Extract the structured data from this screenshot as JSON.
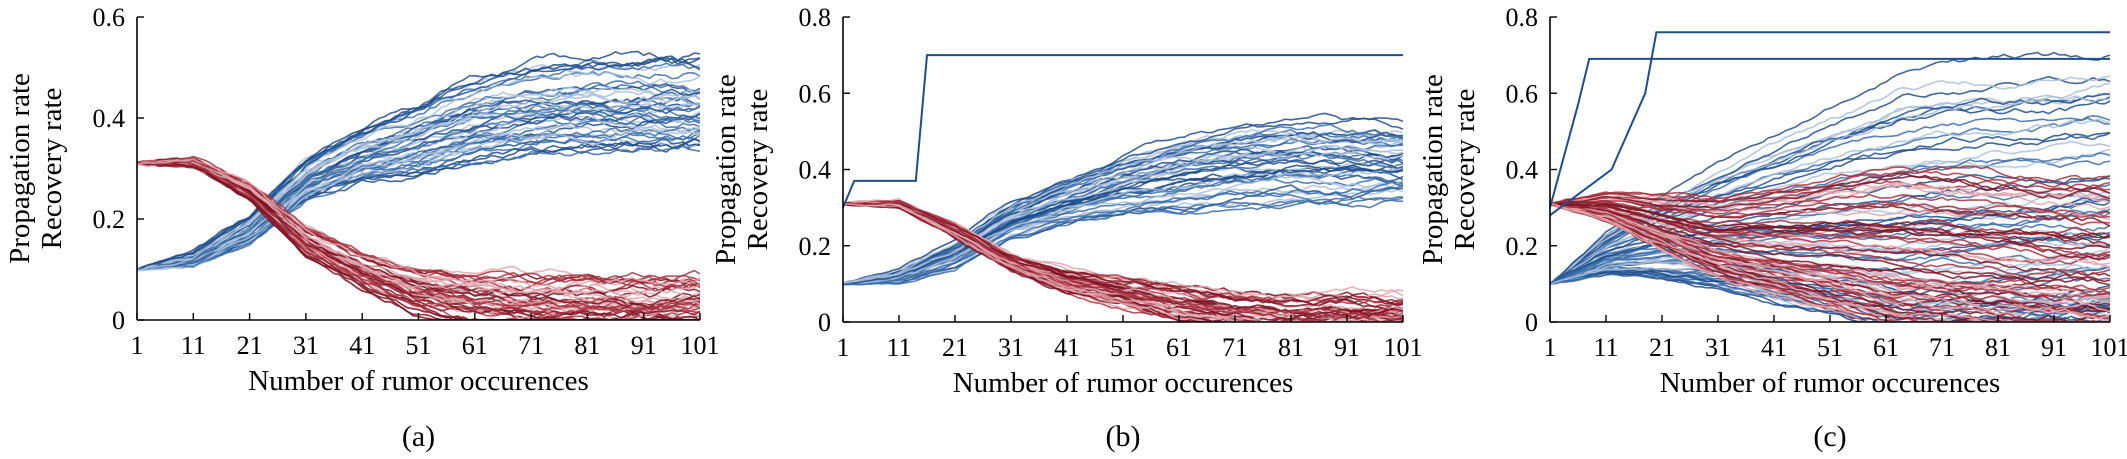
{
  "colors": {
    "propagation_dark": "#1f4e8c",
    "propagation_mid": "#3b6ea8",
    "propagation_light": "#a9bfdc",
    "recovery_dark": "#7d1425",
    "recovery_mid": "#a8323f",
    "recovery_light": "#e2a6ae",
    "axis": "#000000"
  },
  "chart_data": [
    {
      "type": "line",
      "panel_label": "(a)",
      "xlabel": "Number of rumor occurences",
      "ylabel_lines": [
        "Propagation rate",
        "Recovery rate"
      ],
      "xlim": [
        1,
        101
      ],
      "ylim": [
        0,
        0.6
      ],
      "xticks": [
        1,
        11,
        21,
        31,
        41,
        51,
        61,
        71,
        81,
        91,
        101
      ],
      "yticks": [
        0,
        0.2,
        0.4,
        0.6
      ],
      "ytick_labels": [
        "0",
        "0.2",
        "0.4",
        "0.6"
      ],
      "grid": false,
      "legend": "none",
      "series": [
        {
          "group": "propagation",
          "x": [
            1,
            11,
            21,
            31,
            41,
            51,
            61,
            71,
            81,
            91,
            101
          ],
          "mean": [
            0.1,
            0.12,
            0.18,
            0.28,
            0.33,
            0.36,
            0.4,
            0.42,
            0.43,
            0.43,
            0.43
          ],
          "spread_end": 0.09,
          "lines": 45
        },
        {
          "group": "recovery",
          "x": [
            1,
            11,
            21,
            31,
            41,
            51,
            61,
            71,
            81,
            91,
            101
          ],
          "mean": [
            0.31,
            0.31,
            0.25,
            0.15,
            0.09,
            0.05,
            0.03,
            0.02,
            0.02,
            0.02,
            0.02
          ],
          "spread_end": 0.06,
          "lines": 45
        }
      ]
    },
    {
      "type": "line",
      "panel_label": "(b)",
      "xlabel": "Number of rumor occurences",
      "ylabel_lines": [
        "Propagation rate",
        "Recovery rate"
      ],
      "xlim": [
        1,
        101
      ],
      "ylim": [
        0,
        0.8
      ],
      "xticks": [
        1,
        11,
        21,
        31,
        41,
        51,
        61,
        71,
        81,
        91,
        101
      ],
      "yticks": [
        0,
        0.2,
        0.4,
        0.6,
        0.8
      ],
      "ytick_labels": [
        "0",
        "0.2",
        "0.4",
        "0.6",
        "0.8"
      ],
      "grid": false,
      "legend": "none",
      "series": [
        {
          "group": "propagation",
          "x": [
            1,
            11,
            21,
            31,
            41,
            51,
            61,
            71,
            81,
            91,
            101
          ],
          "mean": [
            0.1,
            0.12,
            0.18,
            0.27,
            0.32,
            0.36,
            0.39,
            0.41,
            0.42,
            0.42,
            0.42
          ],
          "spread_end": 0.1,
          "lines": 45
        },
        {
          "group": "recovery",
          "x": [
            1,
            11,
            21,
            31,
            41,
            51,
            61,
            71,
            81,
            91,
            101
          ],
          "mean": [
            0.31,
            0.31,
            0.24,
            0.16,
            0.11,
            0.08,
            0.05,
            0.03,
            0.02,
            0.02,
            0.02
          ],
          "spread_end": 0.05,
          "lines": 45
        },
        {
          "group": "propagation_outlier",
          "x": [
            1,
            3,
            14,
            16,
            101
          ],
          "y": [
            0.3,
            0.37,
            0.37,
            0.7,
            0.7
          ]
        }
      ]
    },
    {
      "type": "line",
      "panel_label": "(c)",
      "xlabel": "Number of rumor occurences",
      "ylabel_lines": [
        "Propagation rate",
        "Recovery rate"
      ],
      "xlim": [
        1,
        101
      ],
      "ylim": [
        0,
        0.8
      ],
      "xticks": [
        1,
        11,
        21,
        31,
        41,
        51,
        61,
        71,
        81,
        91,
        101
      ],
      "yticks": [
        0,
        0.2,
        0.4,
        0.6,
        0.8
      ],
      "ytick_labels": [
        "0",
        "0.2",
        "0.4",
        "0.6",
        "0.8"
      ],
      "grid": false,
      "legend": "none",
      "series": [
        {
          "group": "propagation",
          "x": [
            1,
            11,
            21,
            31,
            41,
            51,
            61,
            71,
            81,
            91,
            101
          ],
          "mean": [
            0.1,
            0.18,
            0.22,
            0.25,
            0.27,
            0.29,
            0.3,
            0.32,
            0.33,
            0.34,
            0.35
          ],
          "spread_end": 0.35,
          "lines": 60
        },
        {
          "group": "recovery",
          "x": [
            1,
            11,
            21,
            31,
            41,
            51,
            61,
            71,
            81,
            91,
            101
          ],
          "mean": [
            0.31,
            0.3,
            0.26,
            0.22,
            0.21,
            0.2,
            0.19,
            0.18,
            0.17,
            0.16,
            0.15
          ],
          "spread_end": 0.22,
          "lines": 60
        },
        {
          "group": "propagation_outlier",
          "x": [
            1,
            6,
            8,
            101
          ],
          "y": [
            0.3,
            0.57,
            0.69,
            0.69
          ]
        },
        {
          "group": "propagation_outlier",
          "x": [
            1,
            12,
            18,
            20,
            101
          ],
          "y": [
            0.28,
            0.4,
            0.6,
            0.76,
            0.76
          ]
        }
      ]
    }
  ]
}
